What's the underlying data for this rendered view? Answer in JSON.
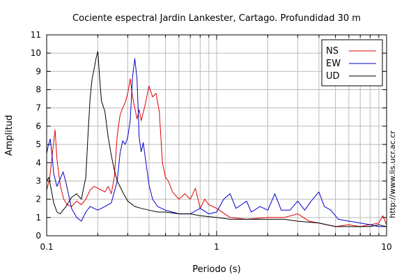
{
  "chart_data": {
    "type": "line",
    "title": "Cociente espectral Jardin Lankester, Cartago. Profundidad 30 m",
    "xlabel": "Periodo (s)",
    "ylabel": "Amplitud",
    "side_note": "http://www.lis.ucr.ac.cr",
    "x_scale": "log",
    "xlim": [
      0.1,
      10
    ],
    "ylim": [
      0,
      11
    ],
    "x_ticks": [
      "0.1",
      "1",
      "10"
    ],
    "y_ticks": [
      "0",
      "1",
      "2",
      "3",
      "4",
      "5",
      "6",
      "7",
      "8",
      "9",
      "10",
      "11"
    ],
    "grid": true,
    "legend_position": "top-right",
    "series": [
      {
        "name": "NS",
        "color": "#e00000",
        "points": [
          [
            0.1,
            2.5
          ],
          [
            0.104,
            3.1
          ],
          [
            0.108,
            4.5
          ],
          [
            0.112,
            5.8
          ],
          [
            0.115,
            4.2
          ],
          [
            0.12,
            2.8
          ],
          [
            0.126,
            2.0
          ],
          [
            0.132,
            1.7
          ],
          [
            0.14,
            1.6
          ],
          [
            0.15,
            1.9
          ],
          [
            0.16,
            1.7
          ],
          [
            0.17,
            2.0
          ],
          [
            0.18,
            2.5
          ],
          [
            0.19,
            2.7
          ],
          [
            0.2,
            2.6
          ],
          [
            0.21,
            2.5
          ],
          [
            0.22,
            2.4
          ],
          [
            0.23,
            2.7
          ],
          [
            0.24,
            2.3
          ],
          [
            0.25,
            3.2
          ],
          [
            0.26,
            5.5
          ],
          [
            0.27,
            6.6
          ],
          [
            0.28,
            7.0
          ],
          [
            0.29,
            7.3
          ],
          [
            0.3,
            7.8
          ],
          [
            0.31,
            8.6
          ],
          [
            0.32,
            7.6
          ],
          [
            0.33,
            7.0
          ],
          [
            0.34,
            6.4
          ],
          [
            0.35,
            6.9
          ],
          [
            0.36,
            6.3
          ],
          [
            0.38,
            7.2
          ],
          [
            0.4,
            8.2
          ],
          [
            0.42,
            7.6
          ],
          [
            0.44,
            7.8
          ],
          [
            0.46,
            6.8
          ],
          [
            0.48,
            4.0
          ],
          [
            0.5,
            3.2
          ],
          [
            0.52,
            3.0
          ],
          [
            0.55,
            2.4
          ],
          [
            0.6,
            2.0
          ],
          [
            0.65,
            2.3
          ],
          [
            0.7,
            2.0
          ],
          [
            0.75,
            2.6
          ],
          [
            0.8,
            1.5
          ],
          [
            0.85,
            2.0
          ],
          [
            0.9,
            1.7
          ],
          [
            1.0,
            1.5
          ],
          [
            1.2,
            1.0
          ],
          [
            1.5,
            0.9
          ],
          [
            2.0,
            1.0
          ],
          [
            2.5,
            1.0
          ],
          [
            3.0,
            1.2
          ],
          [
            3.5,
            0.8
          ],
          [
            4.0,
            0.7
          ],
          [
            5.0,
            0.5
          ],
          [
            6.0,
            0.6
          ],
          [
            7.0,
            0.5
          ],
          [
            8.0,
            0.6
          ],
          [
            9.0,
            0.7
          ],
          [
            9.5,
            1.1
          ],
          [
            10.0,
            0.6
          ]
        ]
      },
      {
        "name": "EW",
        "color": "#0000cc",
        "points": [
          [
            0.1,
            4.5
          ],
          [
            0.102,
            4.9
          ],
          [
            0.105,
            5.3
          ],
          [
            0.108,
            4.2
          ],
          [
            0.11,
            3.4
          ],
          [
            0.115,
            2.7
          ],
          [
            0.12,
            3.1
          ],
          [
            0.125,
            3.5
          ],
          [
            0.13,
            2.9
          ],
          [
            0.14,
            1.5
          ],
          [
            0.15,
            1.0
          ],
          [
            0.16,
            0.8
          ],
          [
            0.17,
            1.3
          ],
          [
            0.18,
            1.6
          ],
          [
            0.2,
            1.4
          ],
          [
            0.22,
            1.6
          ],
          [
            0.24,
            1.8
          ],
          [
            0.26,
            3.0
          ],
          [
            0.27,
            4.5
          ],
          [
            0.28,
            5.2
          ],
          [
            0.29,
            5.0
          ],
          [
            0.3,
            5.4
          ],
          [
            0.31,
            6.3
          ],
          [
            0.32,
            8.7
          ],
          [
            0.33,
            9.7
          ],
          [
            0.34,
            8.6
          ],
          [
            0.35,
            5.4
          ],
          [
            0.36,
            4.6
          ],
          [
            0.37,
            5.1
          ],
          [
            0.38,
            4.3
          ],
          [
            0.4,
            2.8
          ],
          [
            0.42,
            2.0
          ],
          [
            0.45,
            1.6
          ],
          [
            0.5,
            1.4
          ],
          [
            0.55,
            1.3
          ],
          [
            0.6,
            1.2
          ],
          [
            0.7,
            1.2
          ],
          [
            0.8,
            1.5
          ],
          [
            0.9,
            1.2
          ],
          [
            1.0,
            1.3
          ],
          [
            1.1,
            2.0
          ],
          [
            1.2,
            2.3
          ],
          [
            1.3,
            1.5
          ],
          [
            1.4,
            1.7
          ],
          [
            1.5,
            1.9
          ],
          [
            1.6,
            1.3
          ],
          [
            1.8,
            1.6
          ],
          [
            2.0,
            1.4
          ],
          [
            2.2,
            2.3
          ],
          [
            2.4,
            1.4
          ],
          [
            2.7,
            1.4
          ],
          [
            3.0,
            1.9
          ],
          [
            3.3,
            1.4
          ],
          [
            3.6,
            1.9
          ],
          [
            4.0,
            2.4
          ],
          [
            4.3,
            1.6
          ],
          [
            4.7,
            1.4
          ],
          [
            5.2,
            0.9
          ],
          [
            6.0,
            0.8
          ],
          [
            7.0,
            0.7
          ],
          [
            8.0,
            0.6
          ],
          [
            9.0,
            0.5
          ],
          [
            10.0,
            0.5
          ]
        ]
      },
      {
        "name": "UD",
        "color": "#000000",
        "points": [
          [
            0.1,
            3.0
          ],
          [
            0.103,
            3.2
          ],
          [
            0.106,
            2.6
          ],
          [
            0.11,
            1.8
          ],
          [
            0.115,
            1.3
          ],
          [
            0.12,
            1.2
          ],
          [
            0.13,
            1.6
          ],
          [
            0.14,
            2.1
          ],
          [
            0.15,
            2.3
          ],
          [
            0.16,
            2.0
          ],
          [
            0.17,
            3.2
          ],
          [
            0.175,
            5.5
          ],
          [
            0.18,
            7.5
          ],
          [
            0.185,
            8.6
          ],
          [
            0.19,
            9.1
          ],
          [
            0.195,
            9.7
          ],
          [
            0.2,
            10.1
          ],
          [
            0.205,
            8.6
          ],
          [
            0.21,
            7.4
          ],
          [
            0.22,
            6.8
          ],
          [
            0.23,
            5.4
          ],
          [
            0.24,
            4.4
          ],
          [
            0.25,
            3.6
          ],
          [
            0.26,
            3.0
          ],
          [
            0.28,
            2.4
          ],
          [
            0.3,
            1.9
          ],
          [
            0.33,
            1.6
          ],
          [
            0.36,
            1.5
          ],
          [
            0.4,
            1.4
          ],
          [
            0.45,
            1.3
          ],
          [
            0.5,
            1.3
          ],
          [
            0.6,
            1.2
          ],
          [
            0.7,
            1.2
          ],
          [
            0.8,
            1.1
          ],
          [
            1.0,
            1.0
          ],
          [
            1.2,
            0.9
          ],
          [
            1.5,
            0.9
          ],
          [
            2.0,
            0.9
          ],
          [
            2.5,
            0.9
          ],
          [
            3.0,
            0.8
          ],
          [
            4.0,
            0.7
          ],
          [
            5.0,
            0.5
          ],
          [
            6.0,
            0.5
          ],
          [
            7.0,
            0.5
          ],
          [
            8.0,
            0.5
          ],
          [
            9.0,
            0.6
          ],
          [
            10.0,
            0.5
          ]
        ]
      }
    ]
  }
}
